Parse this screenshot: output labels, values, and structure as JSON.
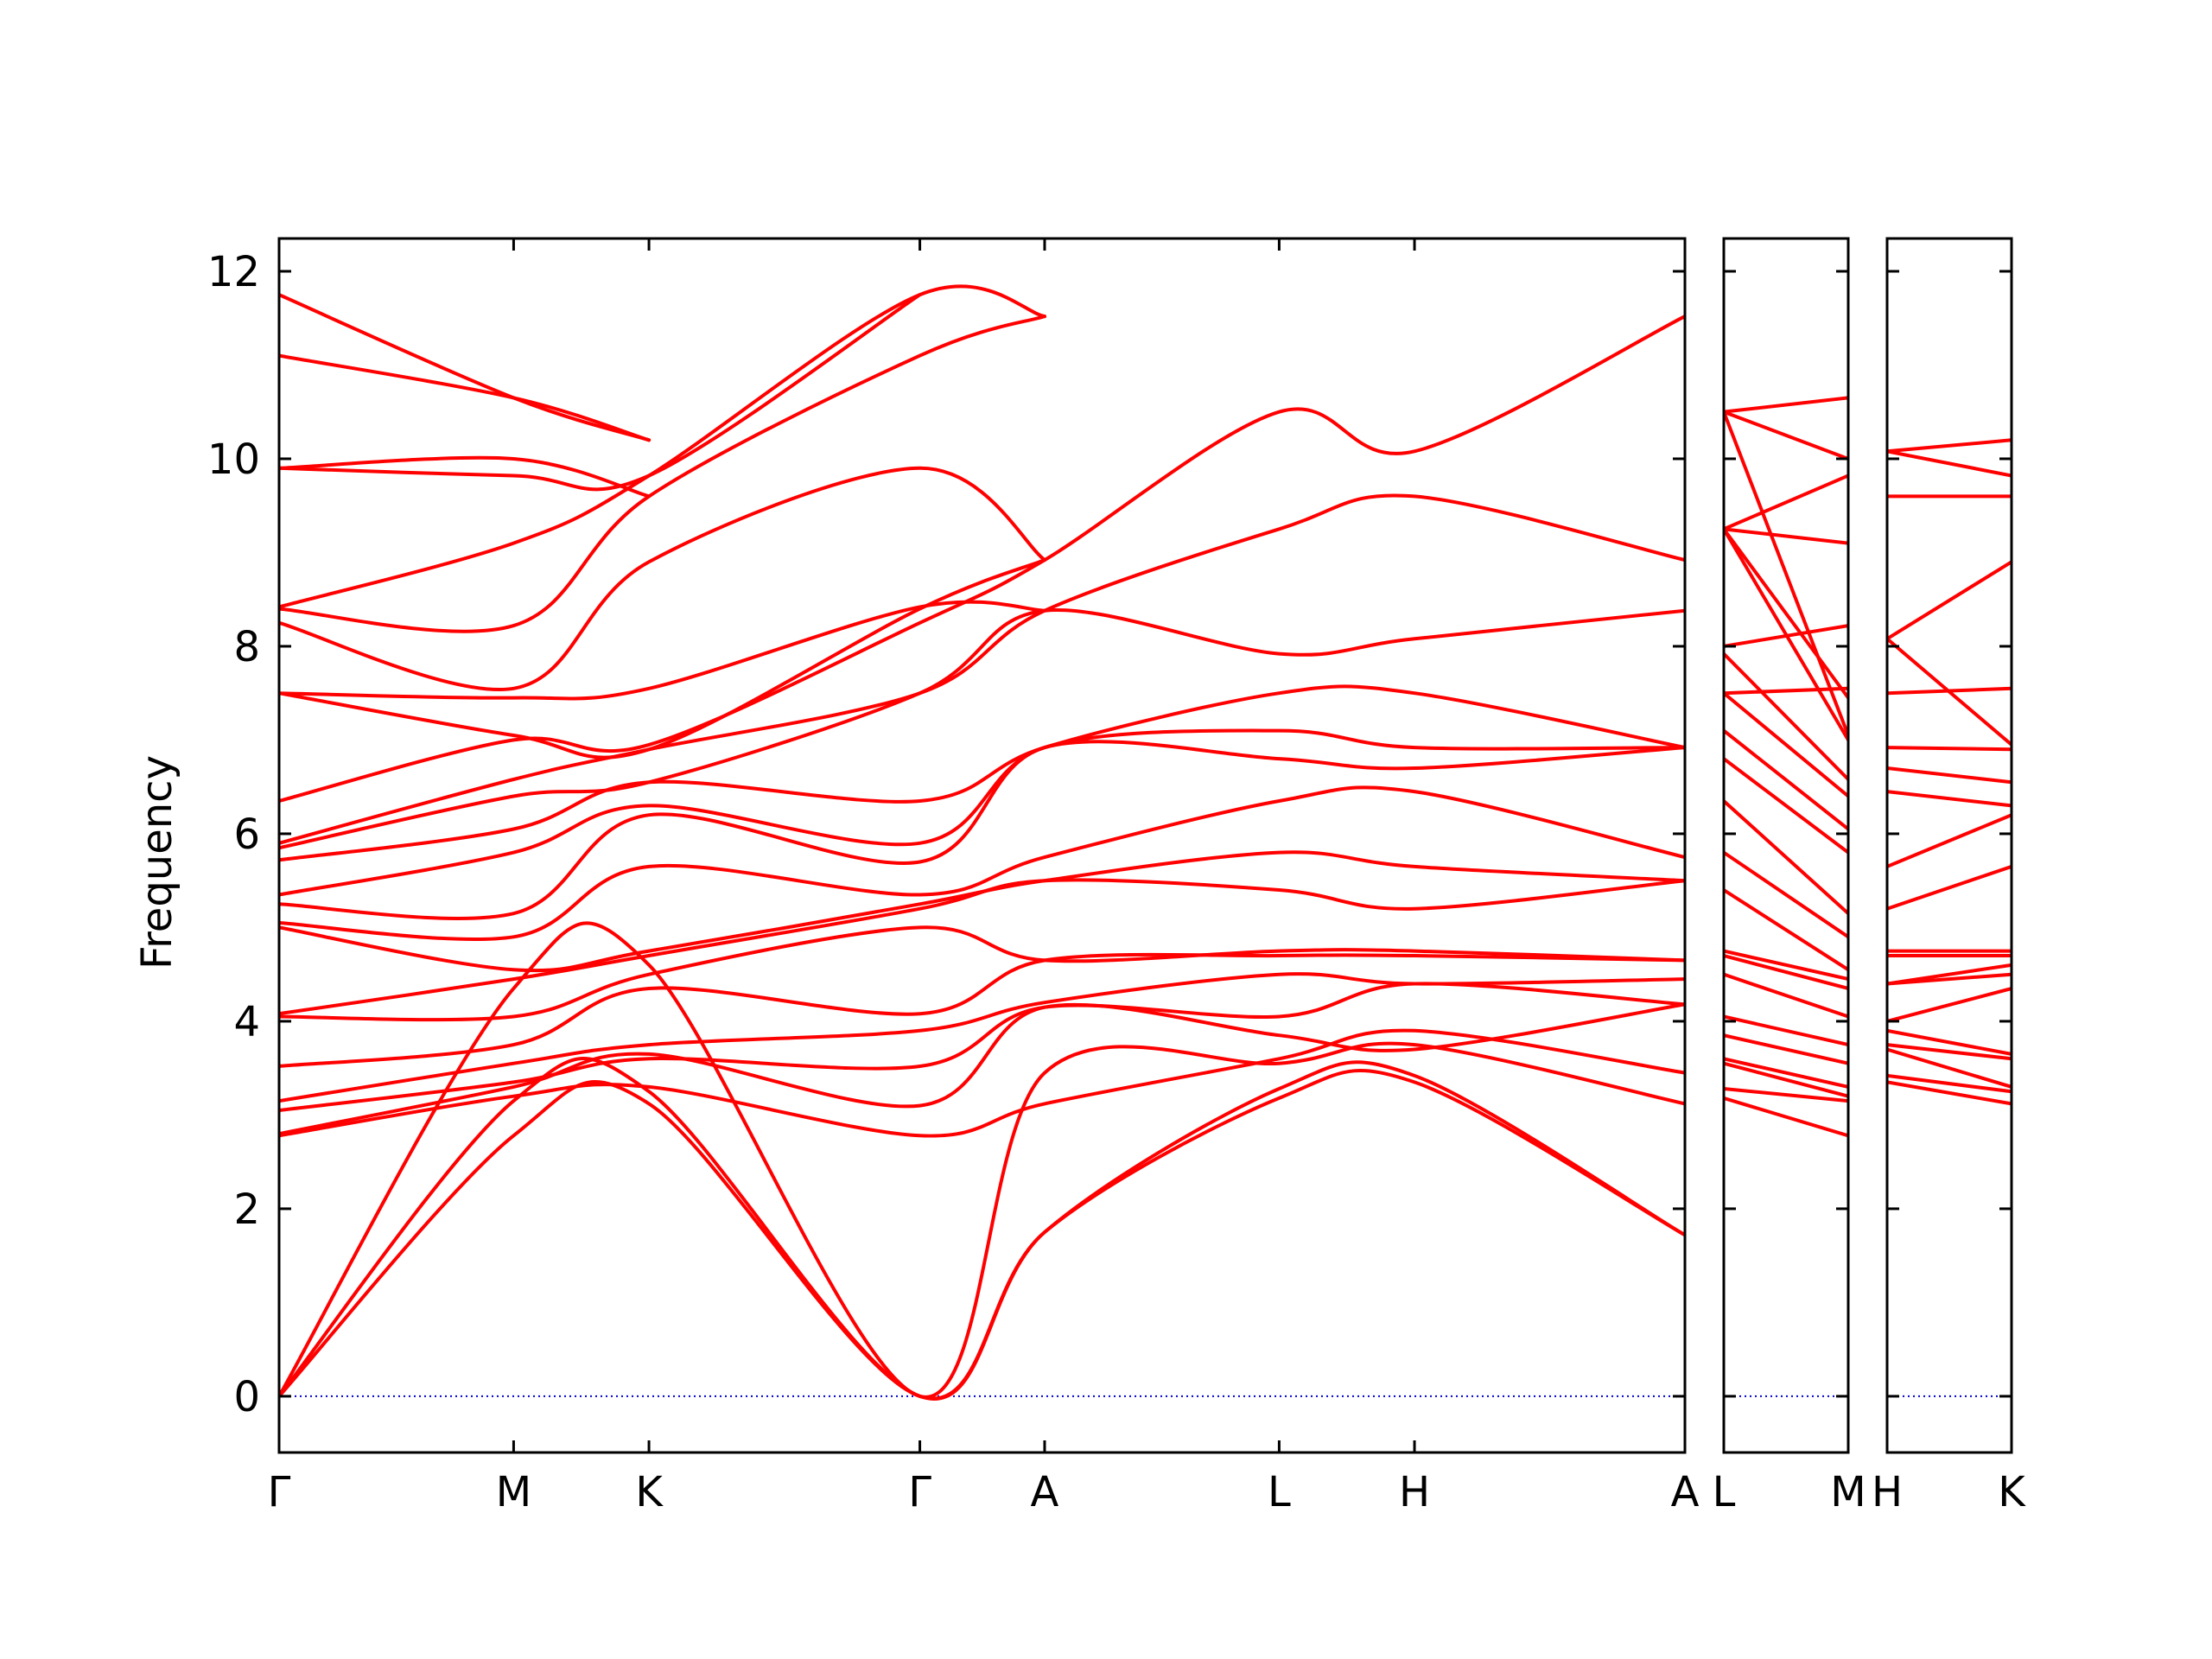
{
  "chart_data": {
    "type": "line",
    "ylabel": "Frequency",
    "ylim": [
      -0.6,
      12.35
    ],
    "yticks": [
      0,
      2,
      4,
      6,
      8,
      10,
      12
    ],
    "grid": false,
    "colors": {
      "bands": "#ff0000",
      "zero_line": "#0000cc"
    },
    "panels": [
      {
        "path": [
          "Γ",
          "M",
          "K",
          "Γ",
          "A",
          "L",
          "H",
          "A"
        ],
        "xticks": [
          "Γ",
          "M",
          "K",
          "Γ",
          "A",
          "L",
          "H",
          "A"
        ],
        "tick_positions": [
          0,
          1.0,
          1.577,
          2.732,
          3.264,
          4.264,
          4.841,
          5.994
        ],
        "x_range": [
          0,
          5.994
        ],
        "bands": [
          {
            "x": [
              0,
              1.0,
              1.577,
              2.732,
              3.264,
              4.264,
              4.841,
              5.994
            ],
            "y": [
              0,
              2.78,
              3.12,
              0,
              1.75,
              3.18,
              3.35,
              1.72
            ]
          },
          {
            "x": [
              0,
              1.0,
              1.577,
              2.732,
              3.264,
              4.264,
              4.841,
              5.994
            ],
            "y": [
              0,
              3.15,
              3.25,
              0,
              1.75,
              3.28,
              3.42,
              1.72
            ]
          },
          {
            "x": [
              0,
              1.0,
              1.577,
              2.732,
              3.264,
              4.264,
              4.841,
              5.994
            ],
            "y": [
              0,
              4.35,
              4.6,
              0,
              3.45,
              3.55,
              3.75,
              3.12
            ]
          },
          {
            "x": [
              0,
              1.0,
              1.577,
              2.732,
              3.264,
              4.264,
              4.841,
              5.994
            ],
            "y": [
              2.78,
              3.2,
              3.3,
              2.78,
              3.12,
              3.6,
              3.9,
              3.45
            ]
          },
          {
            "x": [
              0,
              1.0,
              1.577,
              2.732,
              3.264,
              4.264,
              4.841,
              5.994
            ],
            "y": [
              2.8,
              3.3,
              3.65,
              3.1,
              4.15,
              3.85,
              3.7,
              4.18
            ]
          },
          {
            "x": [
              0,
              1.0,
              1.577,
              2.732,
              3.264,
              4.264,
              4.841,
              5.994
            ],
            "y": [
              3.05,
              3.35,
              3.6,
              3.52,
              4.15,
              4.05,
              4.4,
              4.18
            ]
          },
          {
            "x": [
              0,
              1.0,
              1.577,
              2.732,
              3.264,
              4.264,
              4.841,
              5.994
            ],
            "y": [
              3.15,
              3.55,
              3.75,
              3.9,
              4.2,
              4.5,
              4.4,
              4.45
            ]
          },
          {
            "x": [
              0,
              1.0,
              1.577,
              2.732,
              3.264,
              4.264,
              4.841,
              5.994
            ],
            "y": [
              3.52,
              3.75,
              4.35,
              4.08,
              4.65,
              4.7,
              4.7,
              4.65
            ]
          },
          {
            "x": [
              0,
              1.0,
              1.577,
              2.732,
              3.264,
              4.264,
              4.841,
              5.994
            ],
            "y": [
              4.05,
              4.05,
              4.5,
              5.0,
              4.65,
              4.75,
              4.75,
              4.65
            ]
          },
          {
            "x": [
              0,
              1.0,
              1.577,
              2.732,
              3.264,
              4.264,
              4.841,
              5.994
            ],
            "y": [
              4.08,
              4.45,
              4.7,
              5.2,
              5.5,
              5.4,
              5.2,
              5.5
            ]
          },
          {
            "x": [
              0,
              1.0,
              1.577,
              2.732,
              3.264,
              4.264,
              4.841,
              5.994
            ],
            "y": [
              5.0,
              4.55,
              4.75,
              5.25,
              5.5,
              5.8,
              5.65,
              5.5
            ]
          },
          {
            "x": [
              0,
              1.0,
              1.577,
              2.732,
              3.264,
              4.264,
              4.841,
              5.994
            ],
            "y": [
              5.05,
              4.9,
              5.65,
              5.35,
              5.75,
              6.35,
              6.45,
              5.75
            ]
          },
          {
            "x": [
              0,
              1.0,
              1.577,
              2.732,
              3.264,
              4.264,
              4.841,
              5.994
            ],
            "y": [
              5.25,
              5.15,
              6.2,
              5.7,
              6.92,
              6.8,
              6.7,
              6.92
            ]
          },
          {
            "x": [
              0,
              1.0,
              1.577,
              2.732,
              3.264,
              4.264,
              4.841,
              5.994
            ],
            "y": [
              5.35,
              5.8,
              6.3,
              5.9,
              6.92,
              7.1,
              6.92,
              6.92
            ]
          },
          {
            "x": [
              0,
              1.0,
              1.577,
              2.732,
              3.264,
              4.264,
              4.841,
              5.994
            ],
            "y": [
              5.72,
              6.05,
              6.55,
              6.35,
              6.92,
              7.5,
              7.5,
              6.92
            ]
          },
          {
            "x": [
              0,
              1.0,
              1.577,
              2.732,
              3.264,
              4.264,
              4.841,
              5.994
            ],
            "y": [
              5.85,
              6.4,
              6.55,
              7.5,
              8.38,
              7.92,
              8.08,
              8.38
            ]
          },
          {
            "x": [
              0,
              1.0,
              1.577,
              2.732,
              3.264,
              4.264,
              4.841,
              5.994
            ],
            "y": [
              5.9,
              6.58,
              6.9,
              7.5,
              8.38,
              9.25,
              9.6,
              8.92
            ]
          },
          {
            "x": [
              0,
              1.0,
              1.577,
              2.732,
              3.264,
              4.264,
              4.841,
              5.994
            ],
            "y": [
              6.35,
              7.0,
              6.95,
              8.25,
              8.92,
              10.5,
              10.08,
              11.52
            ]
          },
          {
            "x": [
              0,
              1.0,
              1.577,
              2.732,
              3.264
            ],
            "y": [
              7.5,
              7.05,
              6.9,
              8.4,
              8.92
            ]
          },
          {
            "x": [
              0,
              1.0,
              1.577,
              2.732,
              3.264
            ],
            "y": [
              7.5,
              7.45,
              7.55,
              8.42,
              8.38
            ]
          },
          {
            "x": [
              0,
              1.0,
              1.577,
              2.732,
              3.264
            ],
            "y": [
              8.25,
              7.55,
              8.9,
              9.9,
              8.92
            ]
          },
          {
            "x": [
              0,
              1.0,
              1.577,
              2.732,
              3.264
            ],
            "y": [
              8.4,
              8.22,
              9.6,
              11.1,
              11.52
            ]
          },
          {
            "x": [
              0,
              1.0,
              1.577,
              2.732,
              3.264
            ],
            "y": [
              8.42,
              9.1,
              9.82,
              11.75,
              11.52
            ]
          },
          {
            "x": [
              0,
              1.0,
              1.577,
              2.732
            ],
            "y": [
              9.9,
              9.82,
              9.82,
              11.75
            ]
          },
          {
            "x": [
              0,
              1.0,
              1.577
            ],
            "y": [
              9.9,
              10.0,
              9.6
            ]
          },
          {
            "x": [
              0,
              1.0,
              1.577
            ],
            "y": [
              11.1,
              10.65,
              10.2
            ]
          },
          {
            "x": [
              0,
              1.0,
              1.577
            ],
            "y": [
              11.75,
              10.65,
              10.2
            ]
          }
        ]
      },
      {
        "path": [
          "L",
          "M"
        ],
        "xticks": [
          "L",
          "M"
        ],
        "tick_positions": [
          0,
          0.532
        ],
        "x_range": [
          0,
          0.532
        ],
        "bands": [
          {
            "x": [
              0,
              0.532
            ],
            "y": [
              3.18,
              2.78
            ]
          },
          {
            "x": [
              0,
              0.532
            ],
            "y": [
              3.28,
              3.15
            ]
          },
          {
            "x": [
              0,
              0.532
            ],
            "y": [
              3.55,
              3.2
            ]
          },
          {
            "x": [
              0,
              0.532
            ],
            "y": [
              3.6,
              3.3
            ]
          },
          {
            "x": [
              0,
              0.532
            ],
            "y": [
              3.85,
              3.55
            ]
          },
          {
            "x": [
              0,
              0.532
            ],
            "y": [
              4.05,
              3.75
            ]
          },
          {
            "x": [
              0,
              0.532
            ],
            "y": [
              4.5,
              4.05
            ]
          },
          {
            "x": [
              0,
              0.532
            ],
            "y": [
              4.7,
              4.35
            ]
          },
          {
            "x": [
              0,
              0.532
            ],
            "y": [
              4.75,
              4.45
            ]
          },
          {
            "x": [
              0,
              0.532
            ],
            "y": [
              5.4,
              4.55
            ]
          },
          {
            "x": [
              0,
              0.532
            ],
            "y": [
              5.8,
              4.9
            ]
          },
          {
            "x": [
              0,
              0.532
            ],
            "y": [
              6.35,
              5.15
            ]
          },
          {
            "x": [
              0,
              0.532
            ],
            "y": [
              6.8,
              5.8
            ]
          },
          {
            "x": [
              0,
              0.532
            ],
            "y": [
              7.1,
              6.05
            ]
          },
          {
            "x": [
              0,
              0.532
            ],
            "y": [
              7.5,
              6.4
            ]
          },
          {
            "x": [
              0,
              0.532
            ],
            "y": [
              7.92,
              6.58
            ]
          },
          {
            "x": [
              0,
              0.532
            ],
            "y": [
              9.25,
              7.0
            ]
          },
          {
            "x": [
              0,
              0.532
            ],
            "y": [
              10.5,
              7.05
            ]
          },
          {
            "x": [
              0,
              0.532
            ],
            "y": [
              9.25,
              7.45
            ]
          },
          {
            "x": [
              0,
              0.532
            ],
            "y": [
              7.5,
              7.55
            ]
          },
          {
            "x": [
              0,
              0.532
            ],
            "y": [
              8.0,
              8.22
            ]
          },
          {
            "x": [
              0,
              0.532
            ],
            "y": [
              9.25,
              9.1
            ]
          },
          {
            "x": [
              0,
              0.532
            ],
            "y": [
              9.25,
              9.82
            ]
          },
          {
            "x": [
              0,
              0.532
            ],
            "y": [
              10.5,
              10.0
            ]
          },
          {
            "x": [
              0,
              0.532
            ],
            "y": [
              10.5,
              10.65
            ]
          }
        ]
      },
      {
        "path": [
          "H",
          "K"
        ],
        "xticks": [
          "H",
          "K"
        ],
        "tick_positions": [
          0,
          0.532
        ],
        "x_range": [
          0,
          0.532
        ],
        "bands": [
          {
            "x": [
              0,
              0.532
            ],
            "y": [
              3.35,
              3.12
            ]
          },
          {
            "x": [
              0,
              0.532
            ],
            "y": [
              3.42,
              3.25
            ]
          },
          {
            "x": [
              0,
              0.532
            ],
            "y": [
              3.7,
              3.3
            ]
          },
          {
            "x": [
              0,
              0.532
            ],
            "y": [
              3.75,
              3.6
            ]
          },
          {
            "x": [
              0,
              0.532
            ],
            "y": [
              3.9,
              3.65
            ]
          },
          {
            "x": [
              0,
              0.532
            ],
            "y": [
              4.0,
              4.35
            ]
          },
          {
            "x": [
              0,
              0.532
            ],
            "y": [
              4.4,
              4.5
            ]
          },
          {
            "x": [
              0,
              0.532
            ],
            "y": [
              4.4,
              4.6
            ]
          },
          {
            "x": [
              0,
              0.532
            ],
            "y": [
              4.7,
              4.7
            ]
          },
          {
            "x": [
              0,
              0.532
            ],
            "y": [
              4.75,
              4.75
            ]
          },
          {
            "x": [
              0,
              0.532
            ],
            "y": [
              5.2,
              5.65
            ]
          },
          {
            "x": [
              0,
              0.532
            ],
            "y": [
              5.65,
              6.2
            ]
          },
          {
            "x": [
              0,
              0.532
            ],
            "y": [
              6.45,
              6.3
            ]
          },
          {
            "x": [
              0,
              0.532
            ],
            "y": [
              6.7,
              6.55
            ]
          },
          {
            "x": [
              0,
              0.532
            ],
            "y": [
              6.92,
              6.9
            ]
          },
          {
            "x": [
              0,
              0.532
            ],
            "y": [
              7.5,
              7.55
            ]
          },
          {
            "x": [
              0,
              0.532
            ],
            "y": [
              8.08,
              6.95
            ]
          },
          {
            "x": [
              0,
              0.532
            ],
            "y": [
              8.08,
              8.9
            ]
          },
          {
            "x": [
              0,
              0.532
            ],
            "y": [
              9.6,
              9.6
            ]
          },
          {
            "x": [
              0,
              0.532
            ],
            "y": [
              10.08,
              9.82
            ]
          },
          {
            "x": [
              0,
              0.532
            ],
            "y": [
              10.08,
              10.2
            ]
          }
        ]
      }
    ]
  }
}
